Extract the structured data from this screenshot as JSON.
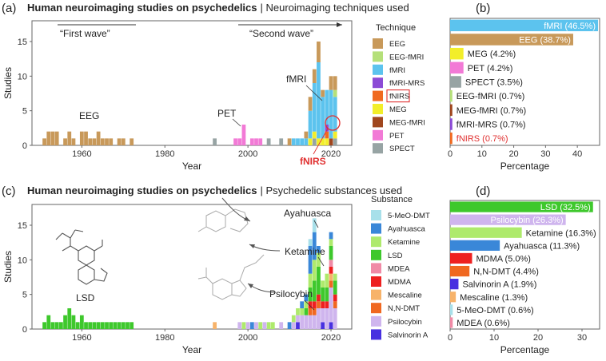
{
  "colors": {
    "EEG": "#c8995a",
    "EEG-fMRI": "#b5e07a",
    "fMRI": "#5cc3ee",
    "fMRI-MRS": "#8c4bd6",
    "fNIRS": "#f06a20",
    "MEG": "#f2ee2a",
    "MEG-fMRI": "#a0461e",
    "PET": "#f27ad6",
    "SPECT": "#97a4a4",
    "5-MeO-DMT": "#a8e0ea",
    "Ayahuasca": "#3a87d8",
    "Ketamine": "#aeea6c",
    "LSD": "#3ec82c",
    "MDEA": "#f08aa6",
    "MDMA": "#ee2020",
    "Mescaline": "#f7b36a",
    "N,N-DMT": "#f06820",
    "Psilocybin": "#cfb5ee",
    "Salvinorin A": "#4830e0",
    "axis": "#555555",
    "highlight": "#e03030"
  },
  "panel_a": {
    "letter": "(a)",
    "title_bold": "Human neuroimaging studies on psychedelics",
    "title_rest": "| Neuroimaging techniques used",
    "ylabel": "Studies",
    "xlabel": "Year",
    "first_wave": "“First wave”",
    "second_wave": "“Second wave”",
    "ann_eeg": "EEG",
    "ann_pet": "PET",
    "ann_fmri": "fMRI",
    "ann_fnirs": "fNIRS",
    "legend_title": "Technique",
    "legend": [
      "EEG",
      "EEG-fMRI",
      "fMRI",
      "fMRI-MRS",
      "fNIRS",
      "MEG",
      "MEG-fMRI",
      "PET",
      "SPECT"
    ]
  },
  "panel_b": {
    "letter": "(b)",
    "xlabel": "Percentage",
    "labels": [
      "fMRI (46.5%)",
      "EEG (38.7%)",
      "MEG (4.2%)",
      "PET (4.2%)",
      "SPECT (3.5%)",
      "EEG-fMRI (0.7%)",
      "MEG-fMRI (0.7%)",
      "fMRI-MRS (0.7%)",
      "fNIRS (0.7%)"
    ]
  },
  "panel_c": {
    "letter": "(c)",
    "title_bold": "Human neuroimaging studies on psychedelics",
    "title_rest": "| Psychedelic substances used",
    "ylabel": "Studies",
    "xlabel": "Year",
    "ann_lsd": "LSD",
    "ann_ayahuasca": "Ayahuasca",
    "ann_ketamine": "Ketamine",
    "ann_psilocybin": "Psilocybin",
    "legend_title": "Substance",
    "legend": [
      "5-MeO-DMT",
      "Ayahuasca",
      "Ketamine",
      "LSD",
      "MDEA",
      "MDMA",
      "Mescaline",
      "N,N-DMT",
      "Psilocybin",
      "Salvinorin A"
    ]
  },
  "panel_d": {
    "letter": "(d)",
    "xlabel": "Percentage",
    "labels": [
      "LSD (32.5%)",
      "Psilocybin (26.3%)",
      "Ketamine (16.3%)",
      "Ayahuasca (11.3%)",
      "MDMA (5.0%)",
      "N,N-DMT (4.4%)",
      "Salvinorin A (1.9%)",
      "Mescaline (1.3%)",
      "5-MeO-DMT (0.6%)",
      "MDEA (0.6%)"
    ]
  },
  "chart_data": [
    {
      "type": "bar",
      "stacked": true,
      "title": "Human neuroimaging studies on psychedelics | Neuroimaging techniques used",
      "xlabel": "Year",
      "ylabel": "Studies",
      "xlim": [
        1948,
        2025
      ],
      "ylim": [
        0,
        18
      ],
      "xticks": [
        1960,
        1980,
        2000,
        2020
      ],
      "yticks": [
        0,
        5,
        10,
        15
      ],
      "stack_order": [
        "SPECT",
        "PET",
        "MEG-fMRI",
        "MEG",
        "fNIRS",
        "fMRI-MRS",
        "fMRI",
        "EEG-fMRI",
        "EEG"
      ],
      "years": [
        1951,
        1952,
        1953,
        1954,
        1956,
        1957,
        1958,
        1960,
        1961,
        1962,
        1963,
        1964,
        1965,
        1966,
        1967,
        1969,
        1970,
        1972,
        1992,
        1997,
        1998,
        1999,
        2001,
        2002,
        2003,
        2005,
        2008,
        2010,
        2011,
        2012,
        2013,
        2014,
        2015,
        2016,
        2017,
        2018,
        2019,
        2020,
        2021
      ],
      "series": [
        {
          "name": "EEG",
          "values": [
            1,
            2,
            2,
            2,
            1,
            2,
            1,
            2,
            2,
            1,
            1,
            2,
            1,
            1,
            1,
            1,
            1,
            1,
            0,
            0,
            0,
            0,
            0,
            0,
            0,
            0,
            0,
            1,
            0,
            0,
            0,
            1,
            2,
            2,
            3,
            1,
            0,
            2,
            2
          ]
        },
        {
          "name": "EEG-fMRI",
          "values": [
            0,
            0,
            0,
            0,
            0,
            0,
            0,
            0,
            0,
            0,
            0,
            0,
            0,
            0,
            0,
            0,
            0,
            0,
            0,
            0,
            0,
            0,
            0,
            0,
            0,
            0,
            0,
            0,
            0,
            0,
            0,
            0,
            0,
            0,
            0,
            0,
            0,
            0,
            1
          ]
        },
        {
          "name": "fMRI",
          "values": [
            0,
            0,
            0,
            0,
            0,
            0,
            0,
            0,
            0,
            0,
            0,
            0,
            0,
            0,
            0,
            0,
            0,
            0,
            0,
            0,
            0,
            0,
            0,
            0,
            0,
            0,
            0,
            0,
            1,
            1,
            1,
            1,
            4,
            7,
            11,
            6,
            5,
            7,
            5
          ]
        },
        {
          "name": "fMRI-MRS",
          "values": [
            0,
            0,
            0,
            0,
            0,
            0,
            0,
            0,
            0,
            0,
            0,
            0,
            0,
            0,
            0,
            0,
            0,
            0,
            0,
            0,
            0,
            0,
            0,
            0,
            0,
            0,
            0,
            0,
            0,
            0,
            0,
            0,
            0,
            0,
            0,
            0,
            1,
            0,
            0
          ]
        },
        {
          "name": "fNIRS",
          "values": [
            0,
            0,
            0,
            0,
            0,
            0,
            0,
            0,
            0,
            0,
            0,
            0,
            0,
            0,
            0,
            0,
            0,
            0,
            0,
            0,
            0,
            0,
            0,
            0,
            0,
            0,
            0,
            0,
            0,
            0,
            0,
            0,
            0,
            0,
            0,
            0,
            1,
            0,
            0
          ]
        },
        {
          "name": "MEG",
          "values": [
            0,
            0,
            0,
            0,
            0,
            0,
            0,
            0,
            0,
            0,
            0,
            0,
            0,
            0,
            0,
            0,
            0,
            0,
            0,
            0,
            0,
            0,
            0,
            0,
            0,
            0,
            0,
            0,
            0,
            0,
            0,
            0,
            1,
            1,
            1,
            1,
            1,
            0,
            1
          ]
        },
        {
          "name": "MEG-fMRI",
          "values": [
            0,
            0,
            0,
            0,
            0,
            0,
            0,
            0,
            0,
            0,
            0,
            0,
            0,
            0,
            0,
            0,
            0,
            0,
            0,
            0,
            0,
            0,
            0,
            0,
            0,
            0,
            0,
            0,
            0,
            0,
            0,
            0,
            0,
            0,
            0,
            0,
            0,
            1,
            0
          ]
        },
        {
          "name": "PET",
          "values": [
            0,
            0,
            0,
            0,
            0,
            0,
            0,
            0,
            0,
            0,
            0,
            0,
            0,
            0,
            0,
            0,
            0,
            0,
            0,
            1,
            1,
            3,
            1,
            1,
            1,
            0,
            0,
            0,
            0,
            0,
            0,
            0,
            0,
            0,
            0,
            0,
            0,
            0,
            0
          ]
        },
        {
          "name": "SPECT",
          "values": [
            0,
            0,
            0,
            0,
            0,
            0,
            0,
            0,
            0,
            0,
            0,
            0,
            0,
            0,
            0,
            0,
            0,
            0,
            1,
            0,
            0,
            0,
            0,
            0,
            0,
            1,
            1,
            0,
            0,
            0,
            0,
            0,
            0,
            1,
            0,
            0,
            0,
            0,
            1
          ]
        }
      ]
    },
    {
      "type": "bar",
      "orientation": "horizontal",
      "xlabel": "Percentage",
      "xlim": [
        0,
        47
      ],
      "xticks": [
        0,
        10,
        20,
        30,
        40
      ],
      "categories": [
        "fMRI",
        "EEG",
        "MEG",
        "PET",
        "SPECT",
        "EEG-fMRI",
        "MEG-fMRI",
        "fMRI-MRS",
        "fNIRS"
      ],
      "values": [
        46.5,
        38.7,
        4.2,
        4.2,
        3.5,
        0.7,
        0.7,
        0.7,
        0.7
      ]
    },
    {
      "type": "bar",
      "stacked": true,
      "title": "Human neuroimaging studies on psychedelics | Psychedelic substances used",
      "xlabel": "Year",
      "ylabel": "Studies",
      "xlim": [
        1948,
        2025
      ],
      "ylim": [
        0,
        18
      ],
      "xticks": [
        1960,
        1980,
        2000,
        2020
      ],
      "yticks": [
        0,
        5,
        10,
        15
      ],
      "stack_order": [
        "Salvinorin A",
        "Psilocybin",
        "N,N-DMT",
        "Mescaline",
        "MDMA",
        "MDEA",
        "LSD",
        "Ketamine",
        "Ayahuasca",
        "5-MeO-DMT"
      ],
      "years": [
        1951,
        1952,
        1953,
        1954,
        1955,
        1956,
        1957,
        1958,
        1959,
        1960,
        1961,
        1962,
        1963,
        1964,
        1965,
        1966,
        1967,
        1968,
        1969,
        1970,
        1971,
        1972,
        1992,
        1997,
        1998,
        1999,
        2000,
        2001,
        2002,
        2003,
        2004,
        2005,
        2006,
        2008,
        2010,
        2011,
        2012,
        2013,
        2014,
        2015,
        2016,
        2017,
        2018,
        2019,
        2020,
        2021
      ],
      "series": [
        {
          "name": "Salvinorin A",
          "values": [
            0,
            0,
            0,
            0,
            0,
            0,
            0,
            0,
            0,
            0,
            0,
            0,
            0,
            0,
            0,
            0,
            0,
            0,
            0,
            0,
            0,
            0,
            0,
            0,
            0,
            0,
            0,
            0,
            0,
            0,
            0,
            0,
            0,
            0,
            0,
            0,
            1,
            0,
            0,
            0,
            0,
            0,
            1,
            0,
            1,
            0
          ]
        },
        {
          "name": "Psilocybin",
          "values": [
            0,
            0,
            0,
            0,
            0,
            0,
            0,
            0,
            0,
            0,
            0,
            0,
            0,
            0,
            0,
            0,
            0,
            0,
            0,
            0,
            0,
            0,
            0,
            0,
            1,
            0,
            1,
            0,
            1,
            0,
            1,
            0,
            0,
            1,
            0,
            1,
            1,
            2,
            2,
            2,
            2,
            3,
            2,
            3,
            5,
            3
          ]
        },
        {
          "name": "N,N-DMT",
          "values": [
            0,
            0,
            0,
            0,
            0,
            0,
            0,
            0,
            0,
            0,
            0,
            0,
            0,
            0,
            0,
            0,
            0,
            0,
            0,
            0,
            0,
            0,
            0,
            0,
            0,
            0,
            0,
            0,
            0,
            0,
            0,
            0,
            0,
            0,
            0,
            0,
            0,
            0,
            0,
            1,
            1,
            1,
            0,
            0,
            1,
            1
          ]
        },
        {
          "name": "Mescaline",
          "values": [
            0,
            0,
            0,
            0,
            0,
            0,
            0,
            0,
            0,
            0,
            0,
            0,
            0,
            0,
            0,
            0,
            0,
            0,
            0,
            0,
            0,
            0,
            1,
            0,
            0,
            0,
            0,
            0,
            0,
            0,
            0,
            0,
            0,
            0,
            0,
            0,
            0,
            0,
            0,
            0,
            0,
            0,
            0,
            0,
            1,
            0
          ]
        },
        {
          "name": "MDMA",
          "values": [
            0,
            0,
            0,
            0,
            0,
            0,
            0,
            0,
            0,
            0,
            0,
            0,
            0,
            0,
            0,
            0,
            0,
            0,
            0,
            0,
            0,
            0,
            0,
            0,
            0,
            0,
            0,
            0,
            0,
            0,
            0,
            0,
            0,
            0,
            0,
            0,
            0,
            0,
            0,
            1,
            1,
            1,
            1,
            1,
            1,
            1
          ]
        },
        {
          "name": "MDEA",
          "values": [
            0,
            0,
            0,
            0,
            0,
            0,
            0,
            0,
            0,
            0,
            0,
            0,
            0,
            0,
            0,
            0,
            0,
            0,
            0,
            0,
            0,
            0,
            0,
            0,
            0,
            0,
            0,
            0,
            0,
            0,
            0,
            0,
            0,
            0,
            0,
            0,
            0,
            0,
            0,
            0,
            0,
            0,
            0,
            0,
            1,
            0
          ]
        },
        {
          "name": "LSD",
          "values": [
            1,
            2,
            1,
            1,
            1,
            2,
            3,
            2,
            1,
            2,
            1,
            1,
            1,
            1,
            1,
            1,
            1,
            1,
            1,
            1,
            1,
            1,
            0,
            0,
            0,
            0,
            0,
            0,
            0,
            0,
            0,
            0,
            0,
            0,
            0,
            0,
            0,
            0,
            1,
            2,
            3,
            4,
            2,
            2,
            2,
            2
          ]
        },
        {
          "name": "Ketamine",
          "values": [
            0,
            0,
            0,
            0,
            0,
            0,
            0,
            0,
            0,
            0,
            0,
            0,
            0,
            0,
            0,
            0,
            0,
            0,
            0,
            0,
            0,
            0,
            0,
            0,
            0,
            1,
            0,
            0,
            0,
            1,
            0,
            1,
            1,
            0,
            0,
            1,
            1,
            1,
            1,
            2,
            3,
            2,
            1,
            2,
            1,
            1
          ]
        },
        {
          "name": "Ayahuasca",
          "values": [
            0,
            0,
            0,
            0,
            0,
            0,
            0,
            0,
            0,
            0,
            0,
            0,
            0,
            0,
            0,
            0,
            0,
            0,
            0,
            0,
            0,
            0,
            0,
            0,
            0,
            0,
            0,
            1,
            0,
            0,
            0,
            0,
            0,
            0,
            1,
            0,
            0,
            1,
            1,
            4,
            4,
            1,
            0,
            0,
            1,
            0
          ]
        },
        {
          "name": "5-MeO-DMT",
          "values": [
            0,
            0,
            0,
            0,
            0,
            0,
            0,
            0,
            0,
            0,
            0,
            0,
            0,
            0,
            0,
            0,
            0,
            0,
            0,
            0,
            0,
            0,
            0,
            0,
            0,
            0,
            0,
            0,
            0,
            0,
            0,
            0,
            0,
            0,
            0,
            0,
            0,
            0,
            0,
            1,
            2,
            0,
            0,
            0,
            0,
            0
          ]
        }
      ]
    },
    {
      "type": "bar",
      "orientation": "horizontal",
      "xlabel": "Percentage",
      "xlim": [
        0,
        34
      ],
      "xticks": [
        0,
        10,
        20,
        30
      ],
      "categories": [
        "LSD",
        "Psilocybin",
        "Ketamine",
        "Ayahuasca",
        "MDMA",
        "N,N-DMT",
        "Salvinorin A",
        "Mescaline",
        "5-MeO-DMT",
        "MDEA"
      ],
      "values": [
        32.5,
        26.3,
        16.3,
        11.3,
        5.0,
        4.4,
        1.9,
        1.3,
        0.6,
        0.6
      ]
    }
  ]
}
